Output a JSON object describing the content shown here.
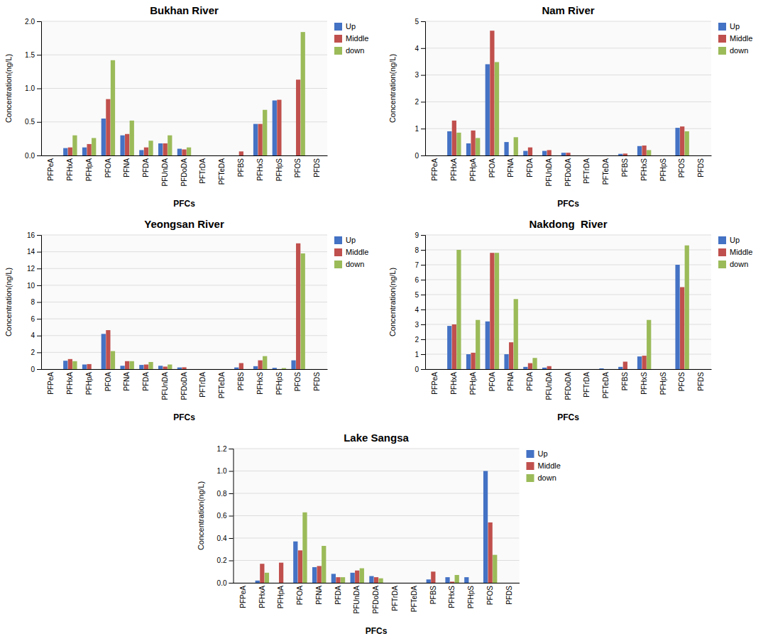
{
  "chart_data": [
    {
      "type": "bar",
      "title": "Bukhan River",
      "xlabel": "PFCs",
      "ylabel": "Concentration(ng/L)",
      "categories": [
        "PFPeA",
        "PFHxA",
        "PFHpA",
        "PFOA",
        "PFNA",
        "PFDA",
        "PFUnDA",
        "PFDoDA",
        "PFTrDA",
        "PFTeDA",
        "PFBS",
        "PFHxS",
        "PFHpS",
        "PFOS",
        "PFDS"
      ],
      "series": [
        {
          "name": "Up",
          "color": "#4472C4",
          "values": [
            0,
            0.11,
            0.12,
            0.55,
            0.3,
            0.08,
            0.18,
            0.1,
            0,
            0,
            0,
            0.47,
            0.82,
            0,
            0
          ]
        },
        {
          "name": "Middle",
          "color": "#C0504D",
          "values": [
            0,
            0.12,
            0.17,
            0.84,
            0.32,
            0.12,
            0.18,
            0.09,
            0,
            0,
            0.06,
            0.47,
            0.83,
            1.13,
            0
          ]
        },
        {
          "name": "down",
          "color": "#9BBB59",
          "values": [
            0,
            0.3,
            0.26,
            1.42,
            0.52,
            0.22,
            0.3,
            0.12,
            0,
            0,
            0,
            0.68,
            0,
            1.84,
            0
          ]
        }
      ],
      "ylim": [
        0,
        2
      ],
      "yticks": [
        {
          "value": 0,
          "label": "0.0"
        },
        0.5,
        {
          "value": 1,
          "label": "1.0"
        },
        1.5,
        {
          "value": 2,
          "label": "2.0"
        }
      ],
      "grid": true,
      "legend": "upper right"
    },
    {
      "type": "bar",
      "title": "Nam River",
      "xlabel": "PFCs",
      "ylabel": "Concentration(ng/L)",
      "categories": [
        "PFPeA",
        "PFHxA",
        "PFHpA",
        "PFOA",
        "PFNA",
        "PFDA",
        "PFUnDA",
        "PFDoDA",
        "PFTrDA",
        "PFTeDA",
        "PFBS",
        "PFHxS",
        "PFHpS",
        "PFOS",
        "PFDS"
      ],
      "series": [
        {
          "name": "Up",
          "color": "#4472C4",
          "values": [
            0,
            0.9,
            0.45,
            3.4,
            0.5,
            0.17,
            0.17,
            0.1,
            0,
            0,
            0.06,
            0.35,
            0,
            1.03,
            0
          ]
        },
        {
          "name": "Middle",
          "color": "#C0504D",
          "values": [
            0,
            1.3,
            0.93,
            4.65,
            0,
            0.3,
            0.2,
            0.1,
            0,
            0,
            0.07,
            0.37,
            0,
            1.08,
            0
          ]
        },
        {
          "name": "down",
          "color": "#9BBB59",
          "values": [
            0,
            0.85,
            0.65,
            3.48,
            0.68,
            0,
            0,
            0,
            0,
            0,
            0,
            0.2,
            0,
            0.9,
            0
          ]
        }
      ],
      "ylim": [
        0,
        5
      ],
      "yticks": [
        0,
        1,
        2,
        3,
        4,
        5
      ],
      "grid": true,
      "legend": "upper right"
    },
    {
      "type": "bar",
      "title": "Yeongsan River",
      "xlabel": "PFCs",
      "ylabel": "Concentration(ng/L)",
      "categories": [
        "PFPeA",
        "PFHxA",
        "PFHpA",
        "PFOA",
        "PFNA",
        "PFDA",
        "PFUnDA",
        "PFDoDA",
        "PFTrDA",
        "PFTeDA",
        "PFBS",
        "PFHxS",
        "PFHpS",
        "PFOS",
        "PFDS"
      ],
      "series": [
        {
          "name": "Up",
          "color": "#4472C4",
          "values": [
            0,
            1.0,
            0.55,
            4.2,
            0.4,
            0.5,
            0.4,
            0.2,
            0,
            0,
            0.2,
            0.35,
            0.15,
            1.05,
            0
          ]
        },
        {
          "name": "Middle",
          "color": "#C0504D",
          "values": [
            0,
            1.2,
            0.6,
            4.65,
            0.95,
            0.55,
            0.3,
            0.22,
            0,
            0,
            0.72,
            1.05,
            0,
            15.0,
            0
          ]
        },
        {
          "name": "down",
          "color": "#9BBB59",
          "values": [
            0,
            0.95,
            0,
            2.15,
            0.95,
            0.85,
            0.55,
            0,
            0,
            0,
            0,
            1.55,
            0.12,
            13.8,
            0
          ]
        }
      ],
      "ylim": [
        0,
        16
      ],
      "yticks": [
        0,
        2,
        4,
        6,
        8,
        10,
        12,
        14,
        16
      ],
      "grid": true,
      "legend": "upper right"
    },
    {
      "type": "bar",
      "title": "Nakdong  River",
      "xlabel": "PFCs",
      "ylabel": "Concentration(ng/L)",
      "categories": [
        "PFPeA",
        "PFHxA",
        "PFHpA",
        "PFOA",
        "PFNA",
        "PFDA",
        "PFUnDA",
        "PFDoDA",
        "PFTrDA",
        "PFTeDA",
        "PFBS",
        "PFHxS",
        "PFHpS",
        "PFOS",
        "PFDS"
      ],
      "series": [
        {
          "name": "Up",
          "color": "#4472C4",
          "values": [
            0,
            2.9,
            1.0,
            3.2,
            1.0,
            0.15,
            0.1,
            0,
            0,
            0.05,
            0.15,
            0.85,
            0,
            7.0,
            0
          ]
        },
        {
          "name": "Middle",
          "color": "#C0504D",
          "values": [
            0,
            3.0,
            1.1,
            7.8,
            1.8,
            0.4,
            0.2,
            0,
            0,
            0,
            0.5,
            0.9,
            0,
            5.5,
            0
          ]
        },
        {
          "name": "down",
          "color": "#9BBB59",
          "values": [
            0,
            8.0,
            3.3,
            7.8,
            4.7,
            0.75,
            0,
            0,
            0,
            0,
            0,
            3.3,
            0,
            8.3,
            0
          ]
        }
      ],
      "ylim": [
        0,
        9
      ],
      "yticks": [
        0,
        1,
        2,
        3,
        4,
        5,
        6,
        7,
        8,
        9
      ],
      "grid": true,
      "legend": "upper right"
    },
    {
      "type": "bar",
      "title": "Lake Sangsa",
      "xlabel": "PFCs",
      "ylabel": "Concentration(ng/L)",
      "categories": [
        "PFPeA",
        "PFHxA",
        "PFHpA",
        "PFOA",
        "PFNA",
        "PFDA",
        "PFUnDA",
        "PFDoDA",
        "PFTrDA",
        "PFTeDA",
        "PFBS",
        "PFHxS",
        "PFHpS",
        "PFOS",
        "PFDS"
      ],
      "series": [
        {
          "name": "Up",
          "color": "#4472C4",
          "values": [
            0,
            0.02,
            0,
            0.37,
            0.14,
            0.08,
            0.09,
            0.06,
            0,
            0,
            0.03,
            0.05,
            0.05,
            1.0,
            0
          ]
        },
        {
          "name": "Middle",
          "color": "#C0504D",
          "values": [
            0,
            0.17,
            0.18,
            0.29,
            0.15,
            0.05,
            0.11,
            0.05,
            0,
            0,
            0.1,
            0.01,
            0,
            0.54,
            0
          ]
        },
        {
          "name": "down",
          "color": "#9BBB59",
          "values": [
            0,
            0.09,
            0,
            0.63,
            0.33,
            0.05,
            0.13,
            0.04,
            0,
            0,
            0,
            0.07,
            0,
            0.25,
            0
          ]
        }
      ],
      "ylim": [
        0,
        1.2
      ],
      "yticks": [
        {
          "value": 0,
          "label": "0.0"
        },
        0.2,
        0.4,
        0.6,
        0.8,
        {
          "value": 1,
          "label": "1.0"
        },
        1.2
      ],
      "grid": true,
      "legend": "upper right"
    }
  ]
}
